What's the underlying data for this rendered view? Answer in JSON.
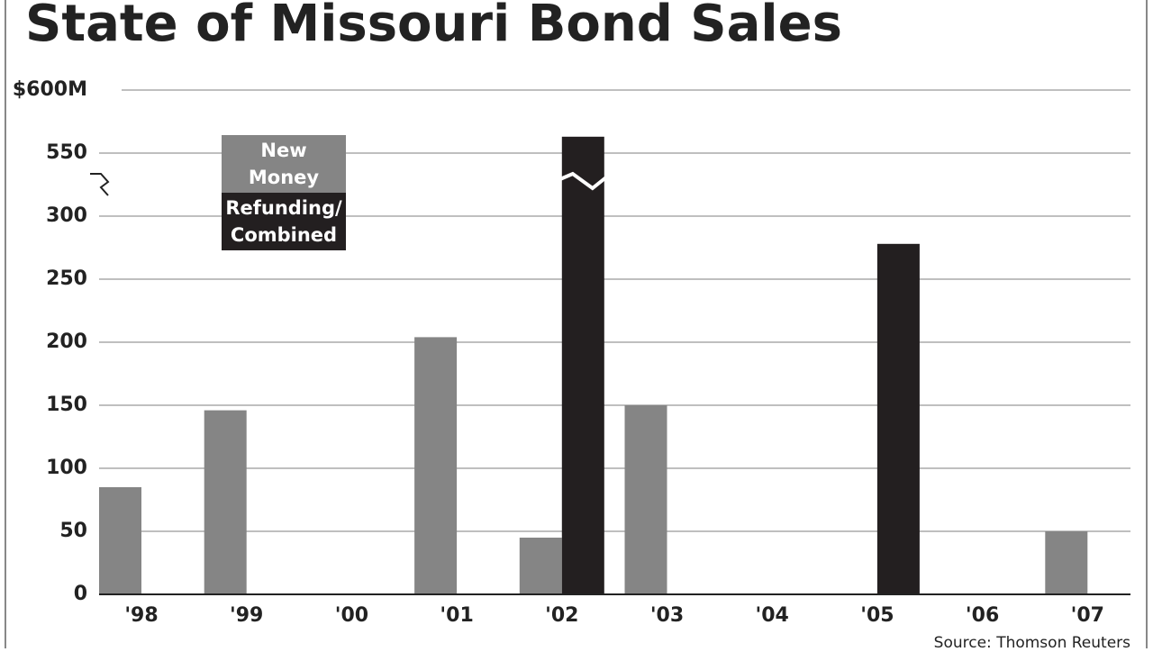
{
  "chart_data": {
    "type": "bar",
    "title": "State of Missouri Bond Sales",
    "source": "Source: Thomson Reuters",
    "categories": [
      "'98",
      "'99",
      "'00",
      "'01",
      "'02",
      "'03",
      "'04",
      "'05",
      "'06",
      "'07"
    ],
    "series": [
      {
        "name": "New Money",
        "color": "#858585",
        "values": [
          85,
          146,
          null,
          204,
          45,
          150,
          null,
          null,
          null,
          50
        ]
      },
      {
        "name": "Refunding/ Combined",
        "color": "#231f20",
        "values": [
          null,
          null,
          null,
          null,
          563,
          null,
          null,
          278,
          null,
          null
        ]
      }
    ],
    "ylim": [
      0,
      600
    ],
    "axis_break": [
      300,
      550
    ],
    "yticks": [
      0,
      50,
      100,
      150,
      200,
      250,
      300,
      550,
      {
        "value": 600,
        "label": "$600M"
      }
    ],
    "grid": true
  }
}
